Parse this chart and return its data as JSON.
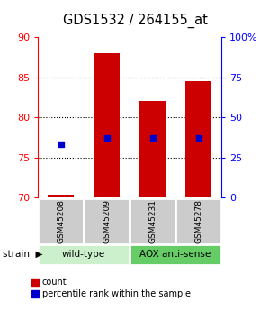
{
  "title": "GDS1532 / 264155_at",
  "samples": [
    "GSM45208",
    "GSM45209",
    "GSM45231",
    "GSM45278"
  ],
  "counts": [
    70.4,
    88.0,
    82.0,
    84.5
  ],
  "percentile_values": [
    33,
    37,
    37,
    37
  ],
  "groups": [
    {
      "label": "wild-type",
      "samples": [
        0,
        1
      ],
      "color": "#ccf0cc"
    },
    {
      "label": "AOX anti-sense",
      "samples": [
        2,
        3
      ],
      "color": "#66cc66"
    }
  ],
  "ylim_left": [
    70,
    90
  ],
  "ylim_right": [
    0,
    100
  ],
  "yticks_left": [
    70,
    75,
    80,
    85,
    90
  ],
  "yticks_right": [
    0,
    25,
    50,
    75,
    100
  ],
  "ytick_labels_right": [
    "0",
    "25",
    "50",
    "75",
    "100%"
  ],
  "bar_color": "#cc0000",
  "dot_color": "#0000cc",
  "bar_width": 0.55,
  "sample_box_color": "#cccccc",
  "label_count": "count",
  "label_percentile": "percentile rank within the sample"
}
